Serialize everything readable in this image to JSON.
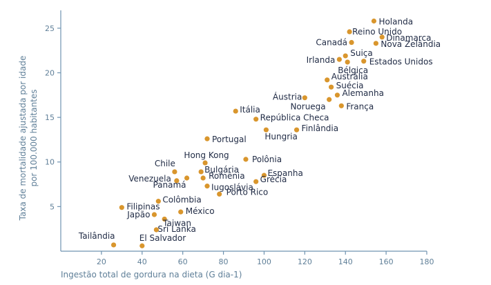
{
  "chart_data": {
    "type": "scatter",
    "title": "",
    "xlabel": "Ingestão total de gordura na dieta (G dia-1)",
    "ylabel": [
      "Taxa de mortalidade ajustada por idade",
      "por 100.000 habitantes"
    ],
    "xlim": [
      0,
      180
    ],
    "ylim": [
      0,
      27
    ],
    "xticks": [
      20,
      40,
      60,
      80,
      100,
      120,
      140,
      160,
      180
    ],
    "yticks": [
      5,
      10,
      15,
      20,
      25
    ],
    "grid": false,
    "color": "#d9962d",
    "points": [
      {
        "label": "Holanda",
        "x": 154,
        "y": 25.8
      },
      {
        "label": "Reino Unido",
        "x": 142,
        "y": 24.6
      },
      {
        "label": "Dinamarca",
        "x": 158,
        "y": 24.0
      },
      {
        "label": "Canadá",
        "x": 143,
        "y": 23.4
      },
      {
        "label": "Nova Zelândia",
        "x": 155,
        "y": 23.3
      },
      {
        "label": "Suiça",
        "x": 140,
        "y": 21.9
      },
      {
        "label": "Irlanda",
        "x": 137,
        "y": 21.5
      },
      {
        "label": "Estados Unidos",
        "x": 149,
        "y": 21.3
      },
      {
        "label": "Bélgica",
        "x": 141,
        "y": 21.2
      },
      {
        "label": "Austrália",
        "x": 131,
        "y": 19.2
      },
      {
        "label": "Suécia",
        "x": 133,
        "y": 18.4
      },
      {
        "label": "Alemanha",
        "x": 136,
        "y": 17.5
      },
      {
        "label": "Áustria",
        "x": 120,
        "y": 17.2
      },
      {
        "label": "Noruega",
        "x": 132,
        "y": 17.0
      },
      {
        "label": "França",
        "x": 138,
        "y": 16.3
      },
      {
        "label": "Itália",
        "x": 86,
        "y": 15.7
      },
      {
        "label": "República Checa",
        "x": 96,
        "y": 14.8
      },
      {
        "label": "Finlândia",
        "x": 116,
        "y": 13.6
      },
      {
        "label": "Hungria",
        "x": 101,
        "y": 13.6
      },
      {
        "label": "Portugal",
        "x": 72,
        "y": 12.6
      },
      {
        "label": "Hong Kong",
        "x": 71,
        "y": 9.9
      },
      {
        "label": "Polônia",
        "x": 91,
        "y": 10.3
      },
      {
        "label": "Chile",
        "x": 56,
        "y": 8.9
      },
      {
        "label": "Bulgária",
        "x": 69,
        "y": 8.9
      },
      {
        "label": "Venezuela",
        "x": 57,
        "y": 7.9
      },
      {
        "label": "Romênia",
        "x": 70,
        "y": 8.2
      },
      {
        "label": "Espanha",
        "x": 100,
        "y": 8.5
      },
      {
        "label": "Iugoslávia",
        "x": 72,
        "y": 7.3
      },
      {
        "label": "Grécia",
        "x": 96,
        "y": 7.8
      },
      {
        "label": "Panamá",
        "x": 62,
        "y": 8.2
      },
      {
        "label": "Porto Rico",
        "x": 78,
        "y": 6.4
      },
      {
        "label": "Colômbia",
        "x": 48,
        "y": 5.6
      },
      {
        "label": "Filipinas",
        "x": 30,
        "y": 4.9
      },
      {
        "label": "México",
        "x": 59,
        "y": 4.4
      },
      {
        "label": "Japão",
        "x": 46,
        "y": 4.1
      },
      {
        "label": "Taiwan",
        "x": 51,
        "y": 3.6
      },
      {
        "label": "Sri Lanka",
        "x": 47,
        "y": 2.4
      },
      {
        "label": "Tailândia",
        "x": 26,
        "y": 0.7
      },
      {
        "label": "El Salvador",
        "x": 40,
        "y": 0.6
      }
    ]
  }
}
